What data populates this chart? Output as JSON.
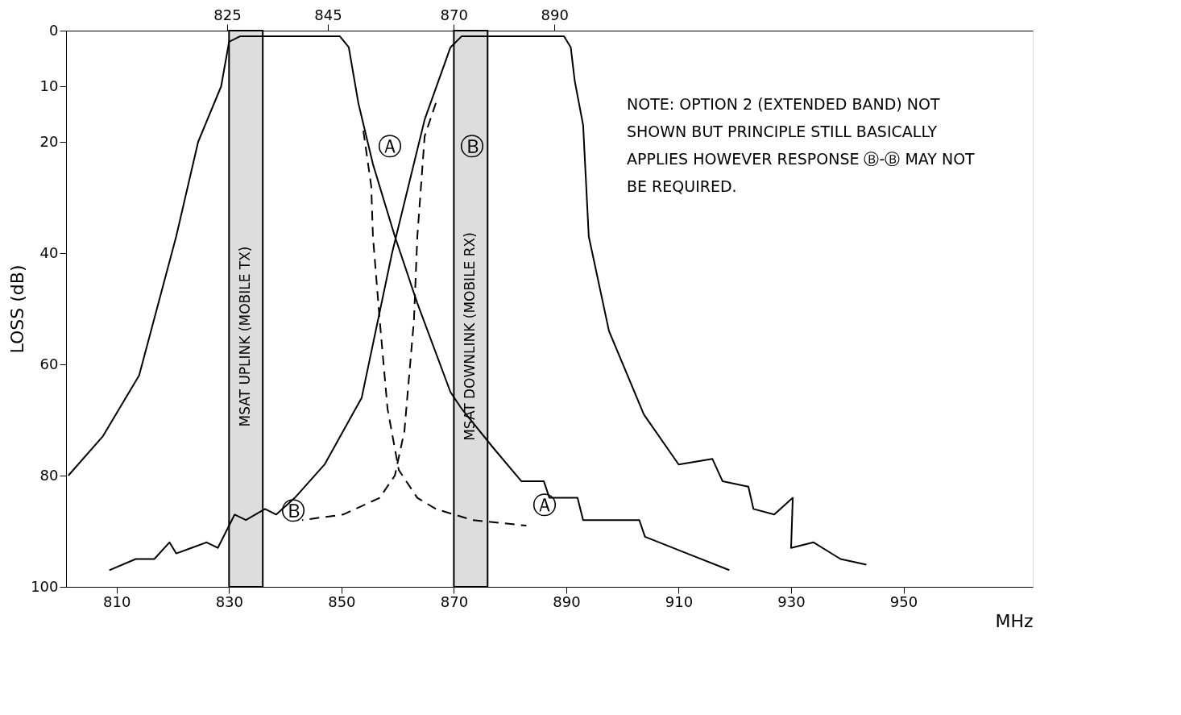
{
  "chart_data": {
    "type": "line",
    "xlabel": "MHz",
    "ylabel": "LOSS (dB)",
    "xlim": [
      801,
      973
    ],
    "xticks": [
      810,
      830,
      850,
      870,
      890,
      910,
      930,
      950
    ],
    "x2lim": [
      793,
      985
    ],
    "x2ticks": [
      825,
      845,
      870,
      890
    ],
    "ylim": [
      100,
      0
    ],
    "yticks": [
      0,
      10,
      20,
      40,
      60,
      80,
      100
    ],
    "grid": false,
    "marker": "none",
    "series": [
      {
        "color": "#000000",
        "line_style": "solid",
        "x": [
          801.4,
          807.5,
          814,
          820.6,
          824.5,
          828.6,
          830,
          832,
          849.7,
          851.3,
          853,
          855.6,
          859.5,
          863.5,
          869.4,
          871.4,
          877,
          882,
          886,
          887,
          892,
          893,
          903,
          904,
          911.5,
          919
        ],
        "values": [
          80,
          73,
          62,
          37,
          20,
          10,
          2,
          1,
          1,
          3,
          13,
          24,
          37,
          49,
          65,
          68,
          75,
          81,
          81,
          84,
          84,
          88,
          88,
          91,
          94,
          97
        ]
      },
      {
        "color": "#000000",
        "line_style": "dashed",
        "x": [
          853.9,
          855.3,
          855.6,
          856.8,
          858.2,
          860.2,
          863.5,
          866.8,
          873.3,
          882.9
        ],
        "values": [
          18,
          28,
          37,
          52,
          68,
          79,
          84,
          86,
          88,
          89
        ]
      },
      {
        "color": "#000000",
        "line_style": "solid",
        "x": [
          808.7,
          813.4,
          816.7,
          819.4,
          820.6,
          823.3,
          826,
          828,
          831,
          833,
          836.4,
          838.4,
          841.7,
          847,
          853.6,
          859,
          864.8,
          869.4,
          871.4,
          889.6,
          890.8,
          891.5,
          893,
          894,
          897.6,
          903.8,
          910,
          916,
          917.8,
          922.4,
          923.3,
          927,
          930.3,
          930,
          934,
          938.8,
          943.4
        ],
        "values": [
          97,
          95,
          95,
          92,
          94,
          93,
          92,
          93,
          87,
          88,
          86,
          87,
          84,
          78,
          66,
          40,
          16,
          3,
          1,
          1,
          3,
          9,
          17,
          37,
          54,
          69,
          78,
          77,
          81,
          82,
          86,
          87,
          84,
          93,
          92,
          95,
          96
        ]
      },
      {
        "color": "#000000",
        "line_style": "dashed",
        "x": [
          866.8,
          864.8,
          863.5,
          862.9,
          861.2,
          859.5,
          856.8,
          850.3,
          843
        ],
        "values": [
          13,
          19,
          37,
          52,
          72,
          80,
          84,
          87,
          88
        ]
      }
    ],
    "bands": [
      {
        "axis": "x",
        "from": 830,
        "to": 836,
        "label": "MSAT UPLINK (MOBILE TX)",
        "color": "#bbbbbb"
      },
      {
        "axis": "x",
        "from": 870,
        "to": 876,
        "label": "MSAT DOWNLINK (MOBILE RX)",
        "color": "#bbbbbb"
      }
    ],
    "annotations": [
      "Ⓐ",
      "Ⓑ",
      "Ⓑ",
      "Ⓐ",
      "NOTE:  OPTION 2 (EXTENDED BAND) NOT SHOWN BUT PRINCIPLE STILL BASICALLY APPLIES HOWEVER RESPONSE Ⓑ-Ⓑ MAY NOT BE REQUIRED."
    ]
  }
}
